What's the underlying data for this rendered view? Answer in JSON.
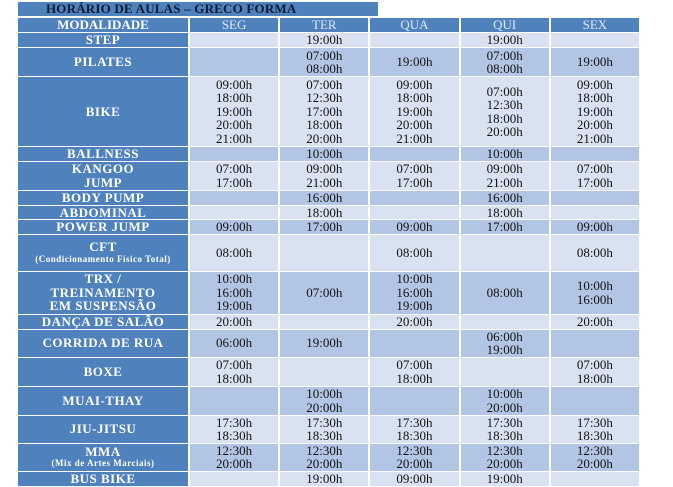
{
  "title": "HORÁRIO DE AULAS – GRECO FORMA",
  "headers": [
    "MODALIDADE",
    "SEG",
    "TER",
    "QUA",
    "QUI",
    "SEX"
  ],
  "rows": [
    {
      "name": "STEP",
      "sub": "",
      "h": 14,
      "shade": "light",
      "times": [
        "",
        "19:00h",
        "",
        "19:00h",
        ""
      ]
    },
    {
      "name": "PILATES",
      "sub": "",
      "h": 28,
      "shade": "dark",
      "times": [
        "",
        "07:00h\n08:00h",
        "19:00h",
        "07:00h\n08:00h",
        "19:00h"
      ]
    },
    {
      "name": "BIKE",
      "sub": "",
      "h": 69,
      "shade": "light",
      "times": [
        "09:00h\n18:00h\n19:00h\n20:00h\n21:00h",
        "07:00h\n12:30h\n17:00h\n18:00h\n20:00h",
        "09:00h\n18:00h\n19:00h\n20:00h\n21:00h",
        "07:00h\n12:30h\n18:00h\n20:00h",
        "09:00h\n18:00h\n19:00h\n20:00h\n21:00h"
      ]
    },
    {
      "name": "BALLNESS",
      "sub": "",
      "h": 13,
      "shade": "dark",
      "times": [
        "",
        "10:00h",
        "",
        "10:00h",
        ""
      ]
    },
    {
      "name": "KANGOO\nJUMP",
      "sub": "",
      "h": 28,
      "shade": "light",
      "times": [
        "07:00h\n17:00h",
        "09:00h\n21:00h",
        "07:00h\n17:00h",
        "09:00h\n21:00h",
        "07:00h\n17:00h"
      ]
    },
    {
      "name": "BODY PUMP",
      "sub": "",
      "h": 14,
      "shade": "dark",
      "times": [
        "",
        "16:00h",
        "",
        "16:00h",
        ""
      ]
    },
    {
      "name": "ABDOMINAL",
      "sub": "",
      "h": 13,
      "shade": "light",
      "times": [
        "",
        "18:00h",
        "",
        "18:00h",
        ""
      ]
    },
    {
      "name": "POWER JUMP",
      "sub": "",
      "h": 13,
      "shade": "dark",
      "times": [
        "09:00h",
        "17:00h",
        "09:00h",
        "17:00h",
        "09:00h"
      ]
    },
    {
      "name": "CFT",
      "sub": "(Condicionamento Físico Total)",
      "h": 36,
      "shade": "light",
      "times": [
        "08:00h",
        "",
        "08:00h",
        "",
        "08:00h"
      ]
    },
    {
      "name": "TRX /\nTREINAMENTO\nEM SUSPENSÃO",
      "sub": "",
      "h": 42,
      "shade": "dark",
      "times": [
        "10:00h\n16:00h\n19:00h",
        "07:00h",
        "10:00h\n16:00h\n19:00h",
        "08:00h",
        "10:00h\n16:00h"
      ]
    },
    {
      "name": "DANÇA DE SALÃO",
      "sub": "",
      "h": 14,
      "shade": "light",
      "times": [
        "20:00h",
        "",
        "20:00h",
        "",
        "20:00h"
      ]
    },
    {
      "name": "CORRIDA DE RUA",
      "sub": "",
      "h": 26,
      "shade": "dark",
      "times": [
        "06:00h",
        "19:00h",
        "",
        "06:00h\n19:00h",
        ""
      ]
    },
    {
      "name": "BOXE",
      "sub": "",
      "h": 28,
      "shade": "light",
      "times": [
        "07:00h\n18:00h",
        "",
        "07:00h\n18:00h",
        "",
        "07:00h\n18:00h"
      ]
    },
    {
      "name": "MUAI-THAY",
      "sub": "",
      "h": 28,
      "shade": "dark",
      "times": [
        "",
        "10:00h\n20:00h",
        "",
        "10:00h\n20:00h",
        ""
      ]
    },
    {
      "name": "JIU-JITSU",
      "sub": "",
      "h": 27,
      "shade": "light",
      "times": [
        "17:30h\n18:30h",
        "17:30h\n18:30h",
        "17:30h\n18:30h",
        "17:30h\n18:30h",
        "17:30h\n18:30h"
      ]
    },
    {
      "name": "MMA",
      "sub": "(Mix de Artes Marciais)",
      "h": 26,
      "shade": "dark",
      "times": [
        "12:30h\n20:00h",
        "12:30h\n20:00h",
        "12:30h\n20:00h",
        "12:30h\n20:00h",
        "12:30h\n20:00h"
      ]
    },
    {
      "name": "BUS BIKE",
      "sub": "",
      "h": 14,
      "shade": "light",
      "times": [
        "",
        "19:00h",
        "09:00h",
        "19:00h",
        ""
      ]
    }
  ]
}
